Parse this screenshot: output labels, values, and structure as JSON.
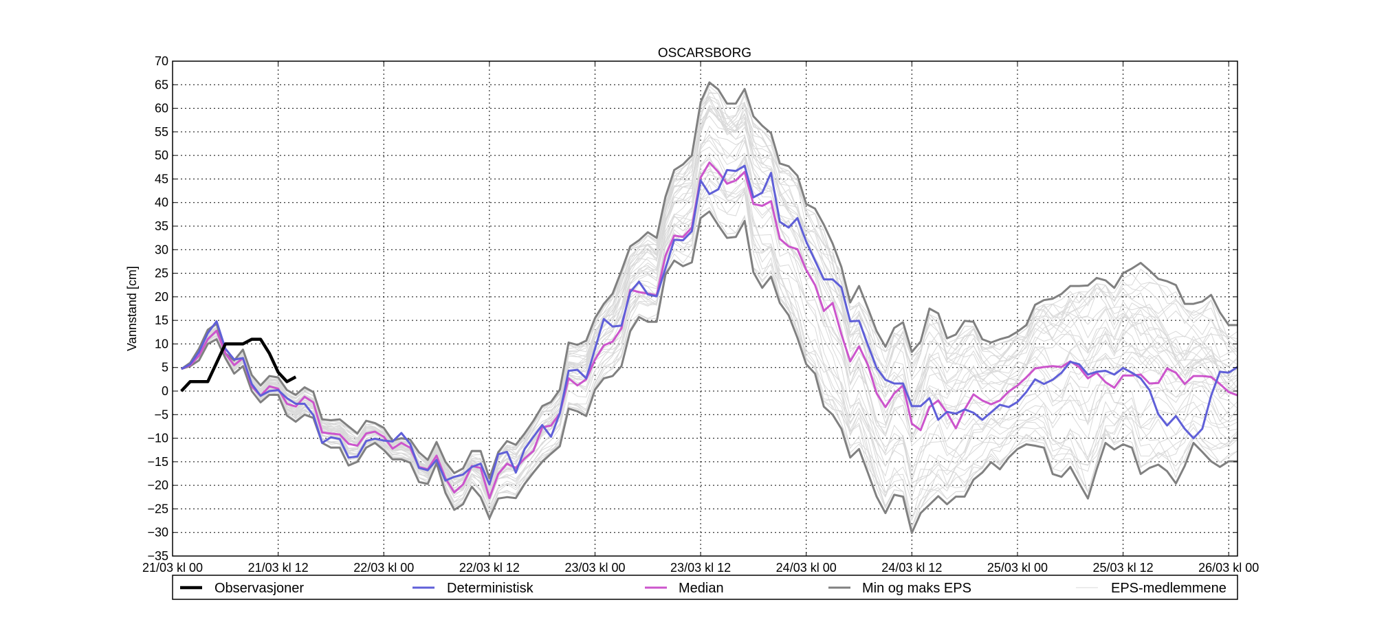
{
  "chart_data": {
    "type": "line",
    "title": "OSCARSBORG",
    "xlabel": "",
    "ylabel": "Vannstand [cm]",
    "x_unit": "hours since 21/03 kl 00",
    "xlim": [
      0,
      121
    ],
    "ylim": [
      -35,
      70
    ],
    "yticks": [
      -35,
      -30,
      -25,
      -20,
      -15,
      -10,
      -5,
      0,
      5,
      10,
      15,
      20,
      25,
      30,
      35,
      40,
      45,
      50,
      55,
      60,
      65,
      70
    ],
    "xticks": [
      {
        "value": 0,
        "label": "21/03 kl 00"
      },
      {
        "value": 12,
        "label": "21/03 kl 12"
      },
      {
        "value": 24,
        "label": "22/03 kl 00"
      },
      {
        "value": 36,
        "label": "22/03 kl 12"
      },
      {
        "value": 48,
        "label": "23/03 kl 00"
      },
      {
        "value": 60,
        "label": "23/03 kl 12"
      },
      {
        "value": 72,
        "label": "24/03 kl 00"
      },
      {
        "value": 84,
        "label": "24/03 kl 12"
      },
      {
        "value": 96,
        "label": "25/03 kl 00"
      },
      {
        "value": 108,
        "label": "25/03 kl 12"
      },
      {
        "value": 120,
        "label": "26/03 kl 00"
      }
    ],
    "grid": true,
    "legend_position": "bottom",
    "x_start": 1,
    "x_step": 1,
    "series": [
      {
        "name": "EPS-medlemmene",
        "color": "#d9d9d9",
        "kind": "ensemble-band",
        "values": []
      },
      {
        "name": "Min og maks EPS",
        "color": "#808080",
        "kind": "min",
        "values": [
          4.7,
          5.3,
          6.5,
          10,
          11,
          7,
          3.7,
          5.3,
          0,
          -2.4,
          -0.8,
          -0.8,
          -5.2,
          -6.5,
          -5,
          -5.7,
          -11,
          -12,
          -12,
          -15.8,
          -15,
          -12,
          -11,
          -12.5,
          -14.5,
          -14.5,
          -15.2,
          -19.3,
          -19.7,
          -15.3,
          -21.6,
          -25.2,
          -24,
          -20.3,
          -22.5,
          -27,
          -22.8,
          -22.5,
          -22.7,
          -19.7,
          -17.3,
          -15,
          -13.3,
          -11.7,
          -3.7,
          -4.3,
          -5.3,
          0.3,
          2.7,
          3.2,
          5.3,
          12.7,
          15.7,
          14.7,
          14.7,
          24.7,
          27.7,
          26.5,
          27.3,
          36.7,
          38.1,
          35.2,
          32.5,
          32.7,
          36.1,
          25.2,
          21.9,
          24.3,
          18.7,
          16.1,
          11.3,
          5.7,
          3.7,
          -3.3,
          -5,
          -8,
          -14.1,
          -12.3,
          -17.3,
          -22.4,
          -25.9,
          -22,
          -22.4,
          -30.1,
          -25.9,
          -24.1,
          -22.3,
          -24,
          -22.4,
          -22.4,
          -18.8,
          -17.3,
          -15.1,
          -16.6,
          -14.1,
          -12.3,
          -11.3,
          -11.6,
          -12,
          -17.6,
          -18.2,
          -16.1,
          -19.5,
          -22.8,
          -16.6,
          -11,
          -12.4,
          -11.3,
          -12,
          -17.6,
          -16.3,
          -15.6,
          -17,
          -19.6,
          -15.9,
          -11,
          -12.9,
          -14.9,
          -16.1,
          -14.9,
          -14.9
        ]
      },
      {
        "name": "Min og maks EPS",
        "color": "#808080",
        "kind": "max",
        "values": [
          4.7,
          6,
          9,
          13,
          14.3,
          8,
          6.5,
          8.8,
          3.4,
          1.2,
          3.2,
          2.9,
          0.2,
          -0.8,
          0.8,
          -0.2,
          -6,
          -6.2,
          -6,
          -7.5,
          -9,
          -6.3,
          -6.8,
          -7.8,
          -10.5,
          -10,
          -10.3,
          -13,
          -14.6,
          -10.8,
          -15,
          -17.4,
          -16.4,
          -12.7,
          -12.7,
          -18.5,
          -13,
          -10.6,
          -11.4,
          -9,
          -6.3,
          -3.2,
          -2.3,
          0.3,
          10.3,
          9.8,
          10.7,
          15.5,
          18.5,
          20.7,
          25.5,
          30.7,
          32,
          33.7,
          32.5,
          41.2,
          46.9,
          48.1,
          50,
          61.3,
          65.5,
          64,
          61,
          61,
          64.1,
          58.3,
          56.3,
          54.7,
          48.3,
          47.7,
          45.7,
          39.7,
          38.7,
          35.3,
          31.3,
          26.3,
          18.8,
          22.3,
          17.6,
          12.7,
          9.4,
          13.4,
          14.6,
          8.3,
          10.5,
          17.5,
          16.5,
          11.2,
          12,
          14.9,
          14.7,
          11,
          10.3,
          11,
          11.5,
          12.6,
          14,
          18.3,
          19.3,
          19.6,
          20.6,
          22.3,
          22.3,
          22.4,
          24,
          23.5,
          21.9,
          25,
          26,
          27.2,
          25.6,
          23.8,
          23.3,
          22.5,
          18.5,
          18.5,
          19,
          20.4,
          16.7,
          14,
          14
        ]
      },
      {
        "name": "Median",
        "color": "#cc55cc",
        "kind": "median",
        "values": [
          4.7,
          5.5,
          7.5,
          11,
          12.8,
          8,
          5.5,
          7,
          1,
          -1,
          1,
          0.5,
          -2.7,
          -3.3,
          -1.2,
          -2.4,
          -8.8,
          -9,
          -9.2,
          -11.2,
          -11.6,
          -9,
          -8.6,
          -9.7,
          -12.2,
          -11,
          -12,
          -16.1,
          -16.6,
          -13.7,
          -18.5,
          -21.5,
          -19.8,
          -15.9,
          -16.3,
          -22.7,
          -17.6,
          -15.4,
          -16.3,
          -14.3,
          -12.7,
          -7.7,
          -7.3,
          -4.7,
          2.7,
          1.2,
          2.5,
          6.7,
          9.7,
          10.5,
          13.3,
          21.5,
          21,
          20.7,
          20.3,
          28.7,
          33,
          32.7,
          34.7,
          45.3,
          48.5,
          46.5,
          44,
          44.7,
          46.5,
          39.7,
          39.3,
          40.3,
          32.3,
          30.7,
          30.1,
          25.7,
          22.5,
          17,
          18.7,
          12,
          6.3,
          9.5,
          5.6,
          -0.5,
          -3.4,
          -0.5,
          1.2,
          -6.9,
          -8.3,
          -3.4,
          -2,
          -4.6,
          -7.9,
          -3.9,
          -0.7,
          -2,
          -2.8,
          -2,
          -0.1,
          1.2,
          2.9,
          4.8,
          5.1,
          5.3,
          5.1,
          6.3,
          5.1,
          2.7,
          3.9,
          1.9,
          0.7,
          3.3,
          3.3,
          3.5,
          1.6,
          1.7,
          4.8,
          3.9,
          1.5,
          3.2,
          3.2,
          3,
          1.5,
          -0.2,
          -0.9
        ]
      },
      {
        "name": "Deterministisk",
        "color": "#5f5fd8",
        "kind": "deterministic",
        "values": [
          4.7,
          5.7,
          8.3,
          12.3,
          14.8,
          9,
          6.7,
          7,
          1.5,
          -1,
          0,
          0.2,
          -1.5,
          -2.7,
          -2.7,
          -5.1,
          -11,
          -9.8,
          -10.2,
          -14.1,
          -13.9,
          -10.6,
          -10.1,
          -10.5,
          -10.7,
          -8.9,
          -11.2,
          -16.3,
          -16.8,
          -14.6,
          -19,
          -18.2,
          -17.7,
          -16.1,
          -15.4,
          -19.8,
          -13.4,
          -12.9,
          -17.3,
          -12.3,
          -9.7,
          -7.2,
          -9.7,
          -4.7,
          4.3,
          4.5,
          2.7,
          9,
          15.3,
          13.7,
          13.9,
          21,
          23.2,
          20.5,
          20.1,
          26,
          32.1,
          32,
          33.9,
          44.7,
          41.8,
          42.8,
          46.9,
          46.7,
          47.8,
          41.1,
          42.1,
          46.3,
          35.9,
          34.7,
          36.7,
          31.7,
          27.7,
          23.7,
          23.7,
          22,
          14.8,
          14.9,
          9.8,
          4.9,
          2.4,
          1.6,
          1.6,
          -3.2,
          -3.2,
          -1.5,
          -6.1,
          -4.4,
          -4.8,
          -3.9,
          -4.6,
          -6.1,
          -4.5,
          -2.9,
          -3.4,
          -2.3,
          -0.2,
          2.5,
          1.5,
          2.4,
          3.9,
          6.2,
          5.7,
          3.5,
          4.1,
          4.3,
          3.5,
          4.9,
          3.9,
          2.7,
          0.2,
          -4.9,
          -7.3,
          -5.3,
          -8,
          -10,
          -8,
          -1,
          4.1,
          3.9,
          5.1
        ]
      },
      {
        "name": "Observasjoner",
        "color": "#000000",
        "kind": "observed",
        "values": [
          0,
          2,
          2,
          2,
          6,
          10,
          10,
          10,
          11,
          11,
          8,
          4,
          2,
          3
        ]
      }
    ],
    "legend": [
      {
        "label": "Observasjoner",
        "color": "#000000",
        "kind": "observed"
      },
      {
        "label": "Deterministisk",
        "color": "#5f5fd8",
        "kind": "deterministic"
      },
      {
        "label": "Median",
        "color": "#cc55cc",
        "kind": "median"
      },
      {
        "label": "Min og maks EPS",
        "color": "#808080",
        "kind": "minmax"
      },
      {
        "label": "EPS-medlemmene",
        "color": "#d9d9d9",
        "kind": "members"
      }
    ]
  }
}
